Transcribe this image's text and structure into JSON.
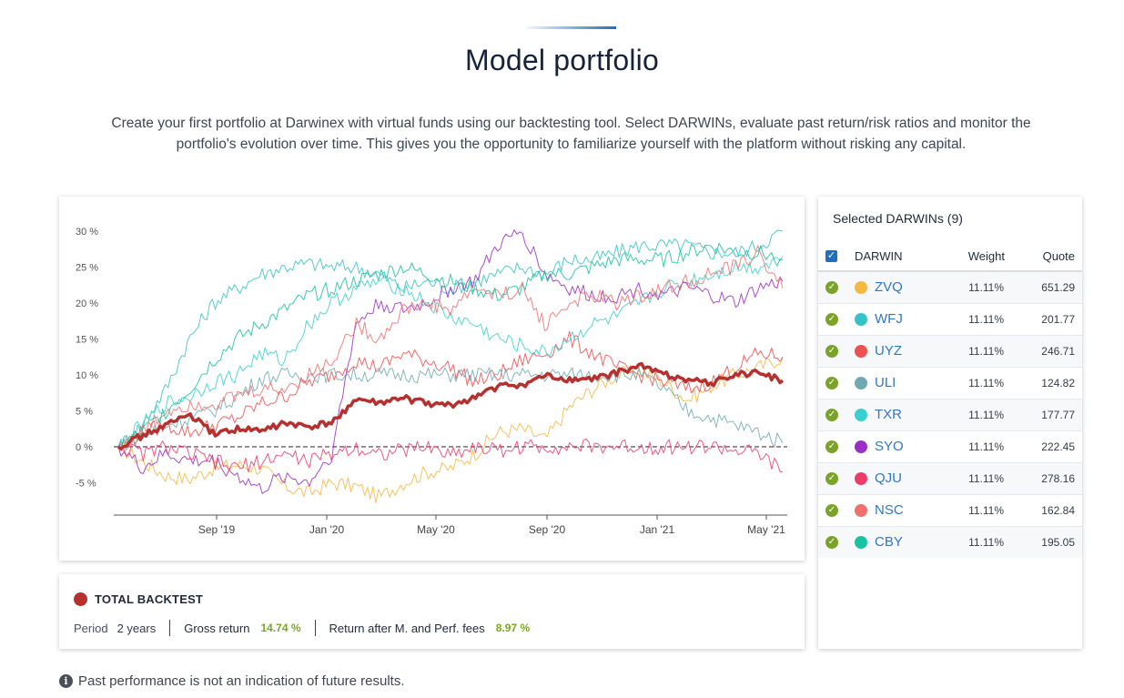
{
  "header": {
    "title": "Model portfolio",
    "intro": "Create your first portfolio at Darwinex with virtual funds using our backtesting tool. Select DARWINs, evaluate past return/risk ratios and monitor the portfolio's evolution over time. This gives you the opportunity to familiarize yourself with the platform without risking any capital."
  },
  "chart_data": {
    "type": "line",
    "y_ticks": [
      "30 %",
      "25 %",
      "20 %",
      "15 %",
      "10 %",
      "5 %",
      "0 %",
      "-5 %"
    ],
    "x_ticks": [
      "Sep '19",
      "Jan '20",
      "May '20",
      "Sep '20",
      "Jan '21",
      "May '21"
    ],
    "ylim": [
      -9.5,
      31
    ],
    "grid": false,
    "series": [
      {
        "name": "TOTAL BACKTEST",
        "color": "#b5302e",
        "width": 3.5,
        "values": [
          0,
          1.5,
          3,
          4.5,
          1.8,
          2.5,
          2.2,
          3.3,
          2.7,
          3.3,
          6.6,
          6,
          6.8,
          6,
          5.7,
          6.9,
          8.4,
          8.6,
          9.8,
          9.3,
          9.4,
          10.3,
          11.3,
          10.1,
          9.4,
          8.8,
          10.1,
          10.3,
          9.2
        ]
      },
      {
        "name": "ZVQ",
        "color": "#f5b942",
        "width": 1,
        "values": [
          0,
          -2,
          -4,
          -4.5,
          -3,
          -2.5,
          -3,
          -5.5,
          -6.5,
          -5,
          -5.5,
          -7,
          -5,
          -3.5,
          -3,
          -1,
          2,
          2.5,
          1,
          5.5,
          8,
          10,
          10.5,
          9,
          6.5,
          8.5,
          10,
          11,
          12.5
        ]
      },
      {
        "name": "WFJ",
        "color": "#36c3c7",
        "width": 1,
        "values": [
          0,
          3,
          8,
          15,
          20,
          22,
          24,
          25,
          25.5,
          25,
          25,
          24,
          22,
          23,
          22,
          23,
          24,
          25,
          24,
          26,
          26,
          27,
          28,
          28,
          28,
          27,
          27,
          28,
          30
        ]
      },
      {
        "name": "UYZ",
        "color": "#ee5050",
        "width": 1,
        "values": [
          0,
          2,
          3,
          2,
          3,
          4,
          6,
          7,
          9,
          10,
          12,
          11,
          13,
          12,
          11,
          9,
          10,
          12,
          13,
          15,
          13,
          11,
          10,
          9,
          8,
          9,
          11,
          13,
          12.5
        ]
      },
      {
        "name": "ULI",
        "color": "#6faab2",
        "width": 1,
        "values": [
          0,
          1.5,
          3,
          4,
          5,
          7,
          9.5,
          10,
          10,
          10,
          10,
          10,
          10,
          10,
          10,
          10,
          10,
          10,
          10,
          10,
          10,
          10,
          10,
          8,
          5,
          4,
          3,
          2,
          0.5
        ]
      },
      {
        "name": "TXR",
        "color": "#3bd0d0",
        "width": 1,
        "values": [
          0,
          3,
          6,
          7,
          9,
          10,
          13,
          12,
          17,
          20,
          22,
          23,
          22,
          20,
          18,
          17,
          15,
          14,
          13,
          15,
          17,
          18,
          20,
          22,
          23,
          24,
          25,
          25,
          26.5
        ]
      },
      {
        "name": "SYO",
        "color": "#9b2fc4",
        "width": 1,
        "values": [
          0,
          -3,
          -1,
          -2,
          -2,
          -4,
          -6,
          -4,
          -5,
          -1,
          17,
          20,
          19,
          20,
          22,
          23,
          28,
          30,
          24,
          22,
          21,
          21,
          22,
          21,
          22,
          21,
          20,
          22,
          23
        ]
      },
      {
        "name": "QJU",
        "color": "#ec3d6a",
        "width": 1,
        "values": [
          0,
          -1,
          0,
          -1,
          -2,
          -3,
          -2,
          -1,
          -2,
          -1,
          0,
          -1,
          -0.5,
          0,
          -1,
          0,
          -0.5,
          0,
          0,
          0,
          0,
          0,
          0,
          0,
          0,
          0,
          -0.5,
          -1,
          -3.5
        ]
      },
      {
        "name": "NSC",
        "color": "#f0706d",
        "width": 1,
        "values": [
          0,
          2,
          5,
          6,
          6,
          7,
          8,
          8,
          10,
          12,
          17,
          15,
          19,
          20,
          19,
          22,
          21,
          22,
          17,
          20,
          21,
          20,
          21,
          22,
          23,
          24,
          25,
          27,
          22
        ]
      },
      {
        "name": "CBY",
        "color": "#19c2a0",
        "width": 1,
        "values": [
          0,
          2,
          5,
          8,
          12,
          15,
          17,
          19,
          21,
          22,
          23,
          24,
          25,
          24,
          23,
          22,
          21,
          22,
          24,
          24,
          25,
          26,
          26,
          26,
          27,
          28,
          27,
          27,
          26
        ]
      }
    ]
  },
  "backtest": {
    "title": "TOTAL BACKTEST",
    "period_label": "Period",
    "period_value": "2 years",
    "gross_label": "Gross return",
    "gross_value": "14.74 %",
    "after_label": "Return after M. and Perf. fees",
    "after_value": "8.97 %"
  },
  "darwins": {
    "header": "Selected DARWINs (9)",
    "col_name": "DARWIN",
    "col_weight": "Weight",
    "col_quote": "Quote",
    "items": [
      {
        "name": "ZVQ",
        "color": "#f5b942",
        "weight": "11.11%",
        "quote": "651.29"
      },
      {
        "name": "WFJ",
        "color": "#36c3c7",
        "weight": "11.11%",
        "quote": "201.77"
      },
      {
        "name": "UYZ",
        "color": "#ee5050",
        "weight": "11.11%",
        "quote": "246.71"
      },
      {
        "name": "ULI",
        "color": "#6faab2",
        "weight": "11.11%",
        "quote": "124.82"
      },
      {
        "name": "TXR",
        "color": "#3bd0d0",
        "weight": "11.11%",
        "quote": "177.77"
      },
      {
        "name": "SYO",
        "color": "#9b2fc4",
        "weight": "11.11%",
        "quote": "222.45"
      },
      {
        "name": "QJU",
        "color": "#ec3d6a",
        "weight": "11.11%",
        "quote": "278.16"
      },
      {
        "name": "NSC",
        "color": "#f0706d",
        "weight": "11.11%",
        "quote": "162.84"
      },
      {
        "name": "CBY",
        "color": "#19c2a0",
        "weight": "11.11%",
        "quote": "195.05"
      }
    ]
  },
  "disclaimer": "Past performance is not an indication of future results."
}
